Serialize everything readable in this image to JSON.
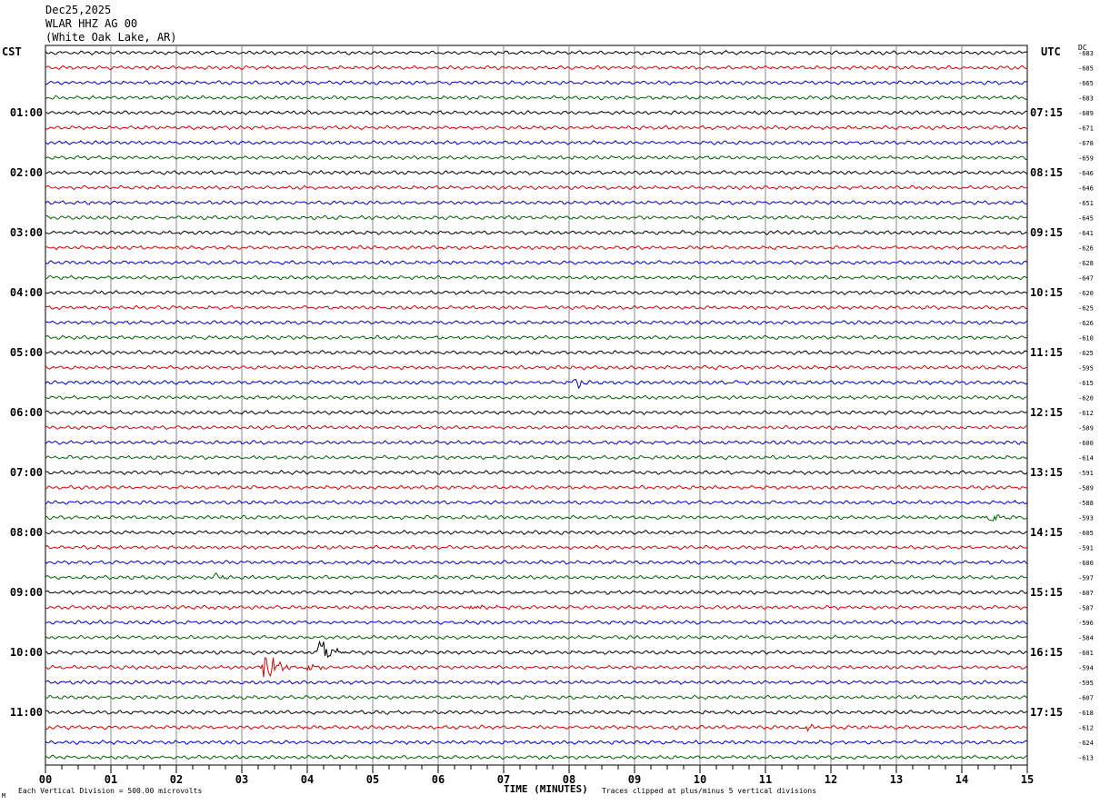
{
  "header": {
    "date": "Dec25,2025",
    "station": "WLAR HHZ AG 00",
    "location": "(White Oak Lake, AR)"
  },
  "left_zone": "CST",
  "right_zone": "UTC",
  "dc_label": "DC",
  "footer": {
    "division_note": "Each Vertical Division =  500.00 microvolts",
    "xlabel": "TIME (MINUTES)",
    "clip_note": "Traces clipped at plus/minus 5 vertical divisions",
    "corner_mark": "M"
  },
  "chart_data": {
    "type": "line",
    "title": "WLAR HHZ AG 00",
    "xlabel": "TIME (MINUTES)",
    "ylabel": "",
    "xlim": [
      0,
      15
    ],
    "x_ticks": [
      "00",
      "01",
      "02",
      "03",
      "04",
      "05",
      "06",
      "07",
      "08",
      "09",
      "10",
      "11",
      "12",
      "13",
      "14",
      "15"
    ],
    "grid": true,
    "trace_colors": [
      "#000000",
      "#dd0000",
      "#0000cc",
      "#006400"
    ],
    "left_time_labels": [
      "01:00",
      "02:00",
      "03:00",
      "04:00",
      "05:00",
      "06:00",
      "07:00",
      "08:00",
      "09:00",
      "10:00",
      "11:00"
    ],
    "right_time_labels": [
      "07:15",
      "08:15",
      "09:15",
      "10:15",
      "11:15",
      "12:15",
      "13:15",
      "14:15",
      "15:15",
      "16:15",
      "17:15"
    ],
    "first_labeled_trace": 4,
    "labels_every_n_traces": 4,
    "dc_offsets": [
      -683,
      -685,
      -665,
      -683,
      -689,
      -671,
      -678,
      -659,
      -646,
      -646,
      -651,
      -645,
      -641,
      -626,
      -628,
      -647,
      -620,
      -625,
      -626,
      -610,
      -625,
      -595,
      -615,
      -620,
      -612,
      -589,
      -600,
      -614,
      -591,
      -589,
      -588,
      -593,
      -605,
      -591,
      -600,
      -597,
      -607,
      -587,
      -596,
      -584,
      -601,
      -594,
      -595,
      -607,
      -618,
      -612,
      -624,
      -613
    ],
    "events": [
      {
        "trace": 22,
        "minute": 8.1,
        "amplitude": 0.8
      },
      {
        "trace": 31,
        "minute": 14.4,
        "amplitude": 1.4
      },
      {
        "trace": 35,
        "minute": 2.6,
        "amplitude": 0.5
      },
      {
        "trace": 37,
        "minute": 6.5,
        "amplitude": 0.5
      },
      {
        "trace": 40,
        "minute": 4.2,
        "amplitude": 2.0
      },
      {
        "trace": 41,
        "minute": 3.35,
        "amplitude": 3.2
      },
      {
        "trace": 41,
        "minute": 4.0,
        "amplitude": 1.0
      },
      {
        "trace": 45,
        "minute": 11.6,
        "amplitude": 0.5
      }
    ]
  }
}
